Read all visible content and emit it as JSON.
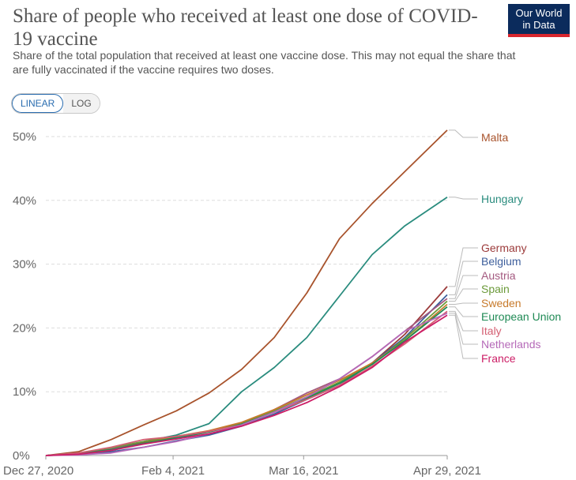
{
  "header": {
    "title": "Share of people who received at least one dose of COVID-19 vaccine",
    "subtitle": "Share of the total population that received at least one vaccine dose. This may not equal the share that are fully vaccinated if the vaccine requires two doses.",
    "logo_line1": "Our World",
    "logo_line2": "in Data"
  },
  "controls": {
    "linear_label": "LINEAR",
    "log_label": "LOG",
    "selected": "LINEAR"
  },
  "chart_data": {
    "type": "line",
    "title": "Share of people who received at least one dose of COVID-19 vaccine",
    "x_dates": [
      "2020-12-27",
      "2021-01-06",
      "2021-01-16",
      "2021-01-26",
      "2021-02-05",
      "2021-02-15",
      "2021-02-25",
      "2021-03-07",
      "2021-03-17",
      "2021-03-27",
      "2021-04-06",
      "2021-04-16",
      "2021-04-29"
    ],
    "x_tick_labels": [
      "Dec 27, 2020",
      "Feb 4, 2021",
      "Mar 16, 2021",
      "Apr 29, 2021"
    ],
    "x_tick_dates": [
      "2020-12-27",
      "2021-02-04",
      "2021-03-16",
      "2021-04-29"
    ],
    "y_tick_labels": [
      "0%",
      "10%",
      "20%",
      "30%",
      "40%",
      "50%"
    ],
    "y_ticks": [
      0,
      10,
      20,
      30,
      40,
      50
    ],
    "ylim": [
      0,
      51
    ],
    "grid": true,
    "legend_placement": "right",
    "series": [
      {
        "name": "Malta",
        "color": "#a8532c",
        "values": [
          0,
          0.6,
          2.5,
          4.8,
          7.0,
          9.8,
          13.5,
          18.5,
          25.5,
          34.0,
          39.5,
          44.5,
          51.0
        ]
      },
      {
        "name": "Hungary",
        "color": "#2a8c7e",
        "values": [
          0,
          0.4,
          1.2,
          2.2,
          3.2,
          5.0,
          10.0,
          13.8,
          18.5,
          25.0,
          31.5,
          36.0,
          40.5
        ]
      },
      {
        "name": "Germany",
        "color": "#9c3b3b",
        "values": [
          0,
          0.3,
          1.0,
          2.0,
          2.9,
          3.8,
          5.0,
          7.0,
          9.0,
          11.5,
          14.5,
          19.0,
          26.5
        ]
      },
      {
        "name": "Belgium",
        "color": "#3e5f9c",
        "values": [
          0,
          0.2,
          0.6,
          1.3,
          2.3,
          3.2,
          4.6,
          6.5,
          8.8,
          11.0,
          14.5,
          18.5,
          25.2
        ]
      },
      {
        "name": "Austria",
        "color": "#a45a80",
        "values": [
          0,
          0.3,
          1.0,
          1.9,
          2.7,
          3.7,
          5.0,
          7.2,
          9.8,
          12.0,
          15.5,
          19.5,
          24.6
        ]
      },
      {
        "name": "Spain",
        "color": "#6b9a3a",
        "values": [
          0,
          0.3,
          1.2,
          2.2,
          3.0,
          3.8,
          5.0,
          7.0,
          9.2,
          11.5,
          14.3,
          18.3,
          24.2
        ]
      },
      {
        "name": "Sweden",
        "color": "#c77a2b",
        "values": [
          0,
          0.2,
          0.8,
          1.9,
          3.0,
          3.9,
          5.2,
          7.2,
          9.5,
          11.8,
          14.5,
          18.0,
          23.7
        ]
      },
      {
        "name": "European Union",
        "color": "#1f8a55",
        "values": [
          0,
          0.3,
          0.9,
          1.9,
          2.8,
          3.7,
          4.9,
          6.8,
          9.0,
          11.3,
          14.3,
          18.0,
          23.3
        ]
      },
      {
        "name": "Italy",
        "color": "#d45f72",
        "values": [
          0,
          0.4,
          1.3,
          2.5,
          3.0,
          3.8,
          4.8,
          6.8,
          8.8,
          11.0,
          14.0,
          17.5,
          22.6
        ]
      },
      {
        "name": "Netherlands",
        "color": "#b569b8",
        "values": [
          0,
          0.1,
          0.4,
          1.3,
          2.2,
          3.4,
          4.8,
          6.8,
          9.2,
          12.0,
          15.5,
          19.5,
          22.3
        ]
      },
      {
        "name": "France",
        "color": "#cc1e66",
        "values": [
          0,
          0.2,
          0.8,
          1.8,
          2.6,
          3.4,
          4.6,
          6.3,
          8.3,
          10.8,
          13.8,
          17.8,
          22.0
        ]
      }
    ]
  }
}
